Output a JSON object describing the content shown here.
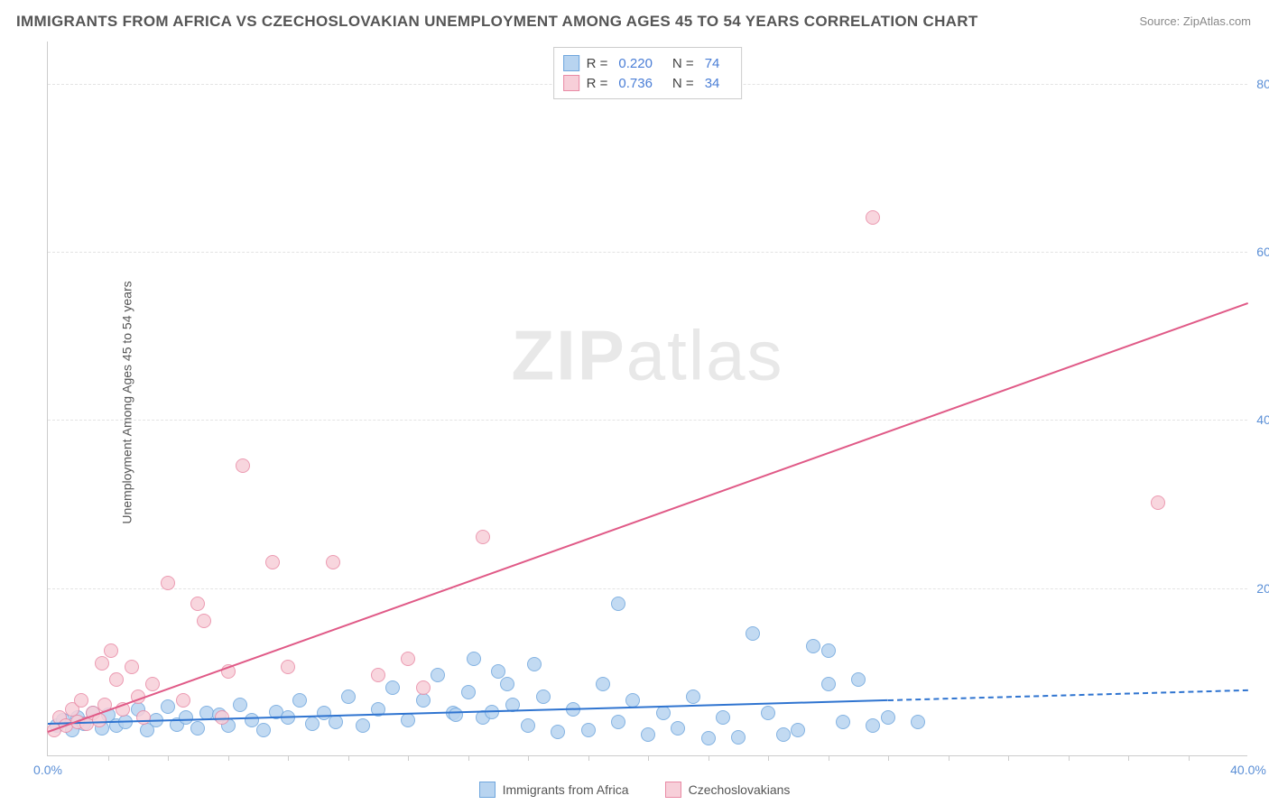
{
  "title": "IMMIGRANTS FROM AFRICA VS CZECHOSLOVAKIAN UNEMPLOYMENT AMONG AGES 45 TO 54 YEARS CORRELATION CHART",
  "source": "Source: ZipAtlas.com",
  "y_axis_label": "Unemployment Among Ages 45 to 54 years",
  "watermark_bold": "ZIP",
  "watermark_rest": "atlas",
  "chart": {
    "type": "scatter",
    "xlim": [
      0,
      40
    ],
    "ylim": [
      0,
      85
    ],
    "x_ticks": [
      0,
      40
    ],
    "x_tick_labels": [
      "0.0%",
      "40.0%"
    ],
    "x_minor_ticks": [
      2,
      4,
      6,
      8,
      10,
      12,
      14,
      16,
      18,
      20,
      22,
      24,
      26,
      28,
      30,
      32,
      34,
      36,
      38
    ],
    "y_ticks": [
      20,
      40,
      60,
      80
    ],
    "y_tick_labels": [
      "20.0%",
      "40.0%",
      "60.0%",
      "80.0%"
    ],
    "background_color": "#ffffff",
    "grid_color": "#e3e3e3",
    "series": [
      {
        "name": "Immigrants from Africa",
        "fill": "#b8d4f0",
        "stroke": "#6fa6dd",
        "trend_color": "#2f74d0",
        "trend_dash_after_x": 28,
        "r_label": "R =",
        "r_value": "0.220",
        "n_label": "N =",
        "n_value": "74",
        "trend_y_at_x0": 4.0,
        "trend_y_at_x40": 8.0,
        "marker_radius": 8,
        "points": [
          [
            0.3,
            3.5
          ],
          [
            0.5,
            4.2
          ],
          [
            0.8,
            3.0
          ],
          [
            1.0,
            4.5
          ],
          [
            1.2,
            3.8
          ],
          [
            1.5,
            5.0
          ],
          [
            1.8,
            3.2
          ],
          [
            2.0,
            4.8
          ],
          [
            2.3,
            3.5
          ],
          [
            2.6,
            4.0
          ],
          [
            3.0,
            5.5
          ],
          [
            3.3,
            3.0
          ],
          [
            3.6,
            4.2
          ],
          [
            4.0,
            5.8
          ],
          [
            4.3,
            3.6
          ],
          [
            4.6,
            4.5
          ],
          [
            5.0,
            3.2
          ],
          [
            5.3,
            5.0
          ],
          [
            5.7,
            4.8
          ],
          [
            6.0,
            3.5
          ],
          [
            6.4,
            6.0
          ],
          [
            6.8,
            4.2
          ],
          [
            7.2,
            3.0
          ],
          [
            7.6,
            5.2
          ],
          [
            8.0,
            4.5
          ],
          [
            8.4,
            6.5
          ],
          [
            8.8,
            3.8
          ],
          [
            9.2,
            5.0
          ],
          [
            9.6,
            4.0
          ],
          [
            10.0,
            7.0
          ],
          [
            10.5,
            3.5
          ],
          [
            11.0,
            5.5
          ],
          [
            11.5,
            8.0
          ],
          [
            12.0,
            4.2
          ],
          [
            12.5,
            6.5
          ],
          [
            13.0,
            9.5
          ],
          [
            13.5,
            5.0
          ],
          [
            14.0,
            7.5
          ],
          [
            14.2,
            11.5
          ],
          [
            14.5,
            4.5
          ],
          [
            15.0,
            10.0
          ],
          [
            15.3,
            8.5
          ],
          [
            15.5,
            6.0
          ],
          [
            16.0,
            3.5
          ],
          [
            16.2,
            10.8
          ],
          [
            16.5,
            7.0
          ],
          [
            17.0,
            2.8
          ],
          [
            17.5,
            5.5
          ],
          [
            18.0,
            3.0
          ],
          [
            18.5,
            8.5
          ],
          [
            19.0,
            4.0
          ],
          [
            19.0,
            18.0
          ],
          [
            19.5,
            6.5
          ],
          [
            20.0,
            2.5
          ],
          [
            20.5,
            5.0
          ],
          [
            21.0,
            3.2
          ],
          [
            21.5,
            7.0
          ],
          [
            22.0,
            2.0
          ],
          [
            22.5,
            4.5
          ],
          [
            23.0,
            2.2
          ],
          [
            23.5,
            14.5
          ],
          [
            24.0,
            5.0
          ],
          [
            24.5,
            2.5
          ],
          [
            25.0,
            3.0
          ],
          [
            25.5,
            13.0
          ],
          [
            26.0,
            8.5
          ],
          [
            26.0,
            12.5
          ],
          [
            26.5,
            4.0
          ],
          [
            27.0,
            9.0
          ],
          [
            27.5,
            3.5
          ],
          [
            28.0,
            4.5
          ],
          [
            29.0,
            4.0
          ],
          [
            13.6,
            4.8
          ],
          [
            14.8,
            5.2
          ]
        ]
      },
      {
        "name": "Czechoslovakians",
        "fill": "#f7cfd9",
        "stroke": "#e98aa5",
        "trend_color": "#e05a87",
        "trend_dash_after_x": 40,
        "r_label": "R =",
        "r_value": "0.736",
        "n_label": "N =",
        "n_value": "34",
        "trend_y_at_x0": 3.0,
        "trend_y_at_x40": 54.0,
        "marker_radius": 8,
        "points": [
          [
            0.2,
            3.0
          ],
          [
            0.4,
            4.5
          ],
          [
            0.6,
            3.5
          ],
          [
            0.8,
            5.5
          ],
          [
            1.0,
            4.0
          ],
          [
            1.1,
            6.5
          ],
          [
            1.3,
            3.8
          ],
          [
            1.5,
            5.0
          ],
          [
            1.7,
            4.2
          ],
          [
            1.8,
            11.0
          ],
          [
            1.9,
            6.0
          ],
          [
            2.1,
            12.5
          ],
          [
            2.3,
            9.0
          ],
          [
            2.5,
            5.5
          ],
          [
            2.8,
            10.5
          ],
          [
            3.0,
            7.0
          ],
          [
            3.2,
            4.5
          ],
          [
            3.5,
            8.5
          ],
          [
            4.0,
            20.5
          ],
          [
            4.5,
            6.5
          ],
          [
            5.0,
            18.0
          ],
          [
            5.2,
            16.0
          ],
          [
            6.0,
            10.0
          ],
          [
            6.5,
            34.5
          ],
          [
            7.5,
            23.0
          ],
          [
            8.0,
            10.5
          ],
          [
            9.5,
            23.0
          ],
          [
            11.0,
            9.5
          ],
          [
            12.0,
            11.5
          ],
          [
            12.5,
            8.0
          ],
          [
            14.5,
            26.0
          ],
          [
            27.5,
            64.0
          ],
          [
            37.0,
            30.0
          ],
          [
            5.8,
            4.5
          ]
        ]
      }
    ],
    "legend_bottom": [
      {
        "label": "Immigrants from Africa",
        "fill": "#b8d4f0",
        "stroke": "#6fa6dd"
      },
      {
        "label": "Czechoslovakians",
        "fill": "#f7cfd9",
        "stroke": "#e98aa5"
      }
    ]
  }
}
